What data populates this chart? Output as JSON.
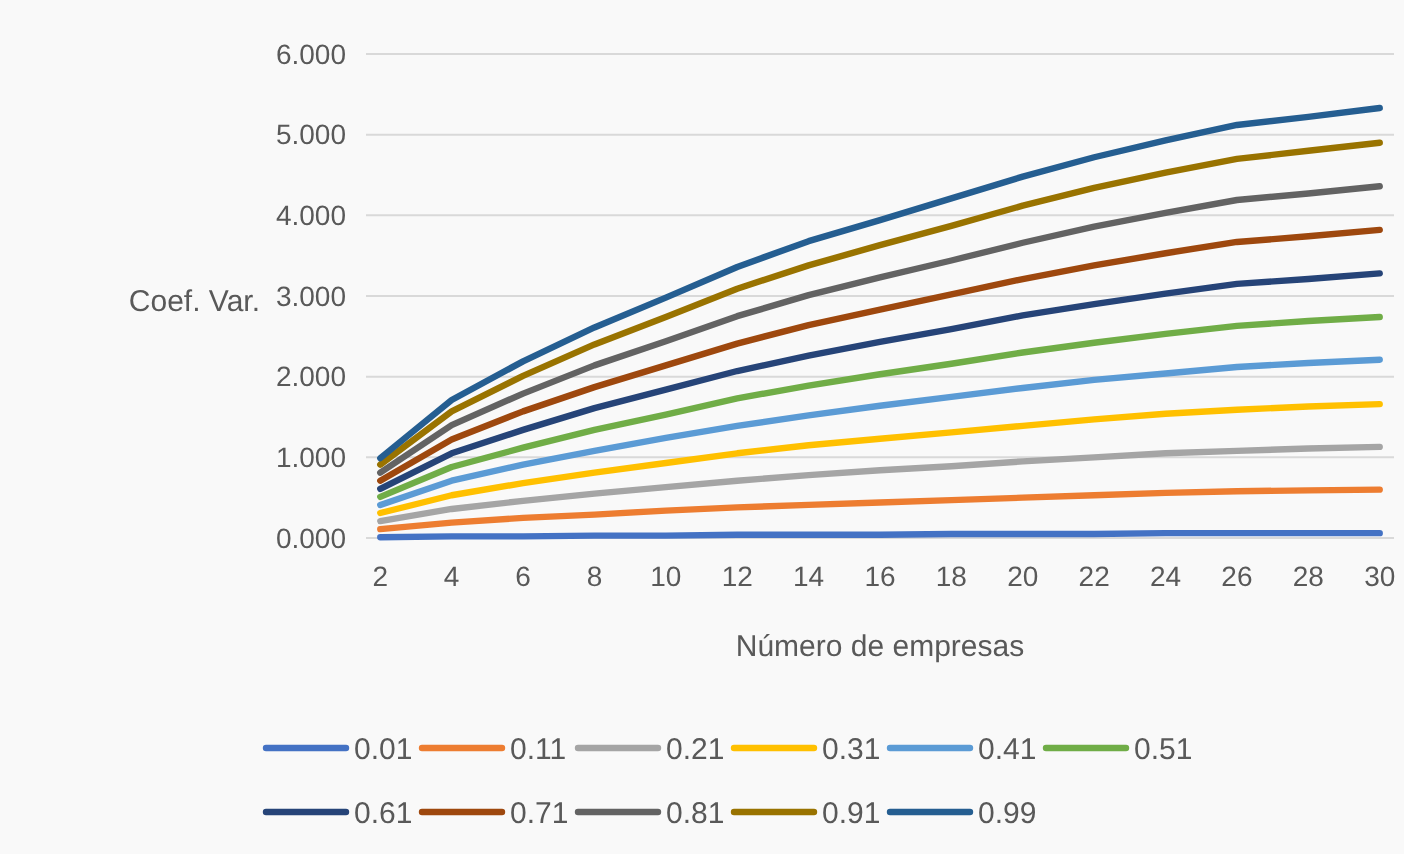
{
  "chart_data": {
    "type": "line",
    "xlabel": "Número de empresas",
    "ylabel": "Coef. Var.",
    "x": [
      2,
      4,
      6,
      8,
      10,
      12,
      14,
      16,
      18,
      20,
      22,
      24,
      26,
      28,
      30
    ],
    "xlim": [
      1.6,
      30.4
    ],
    "xticks": [
      2,
      4,
      6,
      8,
      10,
      12,
      14,
      16,
      18,
      20,
      22,
      24,
      26,
      28,
      30
    ],
    "ylim": [
      0,
      6
    ],
    "yticks": [
      {
        "value": 0,
        "label": "0.000"
      },
      {
        "value": 1,
        "label": "1.000"
      },
      {
        "value": 2,
        "label": "2.000"
      },
      {
        "value": 3,
        "label": "3.000"
      },
      {
        "value": 4,
        "label": "4.000"
      },
      {
        "value": 5,
        "label": "5.000"
      },
      {
        "value": 6,
        "label": "6.000"
      }
    ],
    "grid": "y",
    "legend": "bottom",
    "marker": "none",
    "line_style": "solid",
    "series": [
      {
        "name": "0.01",
        "color": "#4472c4",
        "values": [
          0.01,
          0.02,
          0.02,
          0.03,
          0.03,
          0.04,
          0.04,
          0.04,
          0.05,
          0.05,
          0.05,
          0.06,
          0.06,
          0.06,
          0.06
        ]
      },
      {
        "name": "0.11",
        "color": "#ed7d31",
        "values": [
          0.11,
          0.19,
          0.25,
          0.29,
          0.34,
          0.38,
          0.41,
          0.44,
          0.47,
          0.5,
          0.53,
          0.56,
          0.58,
          0.59,
          0.6
        ]
      },
      {
        "name": "0.21",
        "color": "#a5a5a5",
        "values": [
          0.21,
          0.36,
          0.46,
          0.55,
          0.63,
          0.71,
          0.78,
          0.84,
          0.89,
          0.95,
          1.0,
          1.05,
          1.08,
          1.11,
          1.13
        ]
      },
      {
        "name": "0.31",
        "color": "#ffc000",
        "values": [
          0.31,
          0.53,
          0.68,
          0.81,
          0.93,
          1.05,
          1.15,
          1.23,
          1.31,
          1.39,
          1.47,
          1.54,
          1.59,
          1.63,
          1.66
        ]
      },
      {
        "name": "0.41",
        "color": "#5b9bd5",
        "values": [
          0.41,
          0.71,
          0.91,
          1.08,
          1.24,
          1.39,
          1.52,
          1.64,
          1.75,
          1.86,
          1.96,
          2.04,
          2.12,
          2.17,
          2.21
        ]
      },
      {
        "name": "0.51",
        "color": "#70ad47",
        "values": [
          0.51,
          0.88,
          1.12,
          1.34,
          1.53,
          1.73,
          1.89,
          2.03,
          2.16,
          2.3,
          2.42,
          2.53,
          2.63,
          2.69,
          2.74
        ]
      },
      {
        "name": "0.61",
        "color": "#264478",
        "values": [
          0.61,
          1.05,
          1.34,
          1.61,
          1.84,
          2.07,
          2.26,
          2.43,
          2.59,
          2.76,
          2.9,
          3.03,
          3.15,
          3.21,
          3.28
        ]
      },
      {
        "name": "0.71",
        "color": "#9e480e",
        "values": [
          0.71,
          1.22,
          1.57,
          1.87,
          2.14,
          2.41,
          2.64,
          2.83,
          3.02,
          3.21,
          3.38,
          3.53,
          3.67,
          3.74,
          3.82
        ]
      },
      {
        "name": "0.81",
        "color": "#636363",
        "values": [
          0.81,
          1.4,
          1.79,
          2.14,
          2.44,
          2.75,
          3.01,
          3.23,
          3.44,
          3.66,
          3.86,
          4.03,
          4.19,
          4.27,
          4.36
        ]
      },
      {
        "name": "0.91",
        "color": "#997300",
        "values": [
          0.91,
          1.57,
          2.01,
          2.4,
          2.74,
          3.09,
          3.38,
          3.63,
          3.87,
          4.12,
          4.34,
          4.53,
          4.7,
          4.8,
          4.9
        ]
      },
      {
        "name": "0.99",
        "color": "#255e91",
        "values": [
          0.99,
          1.71,
          2.19,
          2.61,
          2.98,
          3.36,
          3.68,
          3.94,
          4.21,
          4.48,
          4.72,
          4.93,
          5.12,
          5.22,
          5.33
        ]
      }
    ]
  }
}
